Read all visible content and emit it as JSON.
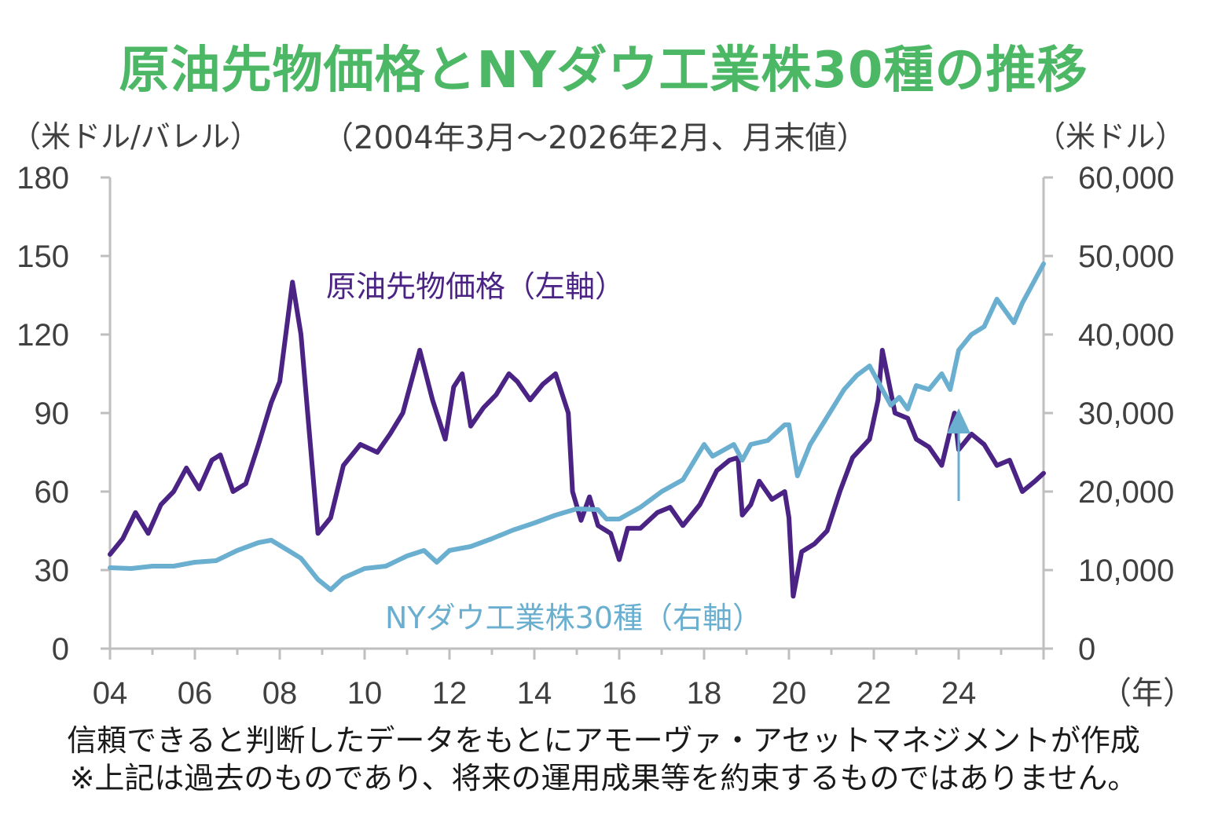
{
  "colors": {
    "title": "#4cb866",
    "oil": "#4b2385",
    "dow": "#6aafd0",
    "axis": "#bfbfbf",
    "text": "#404040"
  },
  "chart_data": {
    "type": "line",
    "title": "原油先物価格とNYダウ工業株30種の推移",
    "subtitle": "（2004年3月～2026年2月、月末値）",
    "left_unit": "（米ドル/バレル）",
    "right_unit": "（米ドル）",
    "x_unit": "（年）",
    "x_tick_labels": [
      "04",
      "06",
      "08",
      "10",
      "12",
      "14",
      "16",
      "18",
      "20",
      "22",
      "24"
    ],
    "x_range": [
      2004.0,
      2026.0
    ],
    "ylim_left": [
      0,
      180
    ],
    "yticks_left": [
      "0",
      "30",
      "60",
      "90",
      "120",
      "150",
      "180"
    ],
    "ylim_right": [
      0,
      60000
    ],
    "yticks_right": [
      "0",
      "10,000",
      "20,000",
      "30,000",
      "40,000",
      "50,000",
      "60,000"
    ],
    "series": [
      {
        "name": "原油先物価格（左軸）",
        "axis": "left",
        "x": [
          2004.0,
          2004.3,
          2004.6,
          2004.9,
          2005.2,
          2005.5,
          2005.8,
          2006.1,
          2006.4,
          2006.6,
          2006.9,
          2007.2,
          2007.5,
          2007.8,
          2008.0,
          2008.3,
          2008.5,
          2008.9,
          2009.2,
          2009.5,
          2009.9,
          2010.3,
          2010.6,
          2010.9,
          2011.1,
          2011.3,
          2011.6,
          2011.9,
          2012.1,
          2012.3,
          2012.5,
          2012.8,
          2013.1,
          2013.4,
          2013.6,
          2013.9,
          2014.2,
          2014.5,
          2014.8,
          2014.9,
          2015.1,
          2015.3,
          2015.5,
          2015.8,
          2016.0,
          2016.2,
          2016.5,
          2016.9,
          2017.2,
          2017.5,
          2017.9,
          2018.3,
          2018.6,
          2018.8,
          2018.9,
          2019.1,
          2019.3,
          2019.6,
          2019.9,
          2020.0,
          2020.1,
          2020.3,
          2020.6,
          2020.9,
          2021.2,
          2021.5,
          2021.9,
          2022.1,
          2022.2,
          2022.5,
          2022.8,
          2023.0,
          2023.3,
          2023.6,
          2023.9,
          2024.0,
          2024.3,
          2024.6,
          2024.9,
          2025.2,
          2025.5,
          2025.8,
          2026.0
        ],
        "values": [
          36,
          42,
          52,
          44,
          55,
          60,
          69,
          61,
          72,
          74,
          60,
          63,
          78,
          94,
          102,
          140,
          120,
          44,
          50,
          70,
          78,
          75,
          82,
          90,
          102,
          114,
          95,
          80,
          100,
          105,
          85,
          92,
          97,
          105,
          102,
          95,
          101,
          105,
          90,
          60,
          49,
          58,
          47,
          44,
          34,
          46,
          46,
          52,
          54,
          47,
          55,
          68,
          72,
          73,
          51,
          55,
          64,
          57,
          60,
          50,
          20,
          37,
          40,
          45,
          60,
          73,
          80,
          95,
          114,
          90,
          88,
          80,
          77,
          70,
          90,
          76,
          82,
          78,
          70,
          72,
          60,
          64,
          67
        ]
      },
      {
        "name": "NYダウ工業株30種（右軸）",
        "axis": "right",
        "x": [
          2004.0,
          2004.5,
          2005.0,
          2005.5,
          2006.0,
          2006.5,
          2007.0,
          2007.5,
          2007.8,
          2008.2,
          2008.5,
          2008.9,
          2009.2,
          2009.5,
          2010.0,
          2010.5,
          2011.0,
          2011.4,
          2011.7,
          2012.0,
          2012.5,
          2013.0,
          2013.5,
          2014.0,
          2014.5,
          2015.0,
          2015.5,
          2015.7,
          2016.0,
          2016.5,
          2017.0,
          2017.5,
          2018.0,
          2018.2,
          2018.7,
          2018.9,
          2019.1,
          2019.5,
          2019.9,
          2020.0,
          2020.2,
          2020.5,
          2020.9,
          2021.3,
          2021.6,
          2021.9,
          2022.1,
          2022.4,
          2022.6,
          2022.8,
          2023.0,
          2023.3,
          2023.6,
          2023.8,
          2024.0,
          2024.3,
          2024.6,
          2024.9,
          2025.1,
          2025.3,
          2025.5,
          2025.8,
          2026.0
        ],
        "values": [
          10300,
          10200,
          10500,
          10500,
          11000,
          11200,
          12500,
          13500,
          13800,
          12500,
          11500,
          8800,
          7500,
          9000,
          10200,
          10500,
          11800,
          12500,
          11000,
          12500,
          13000,
          14000,
          15100,
          16000,
          17000,
          17800,
          17700,
          16500,
          16500,
          18000,
          20000,
          21500,
          26000,
          24500,
          26000,
          24000,
          26000,
          26500,
          28500,
          28500,
          22000,
          26000,
          29500,
          33000,
          34800,
          36000,
          34000,
          31000,
          32000,
          30500,
          33500,
          33000,
          35000,
          33000,
          38000,
          40000,
          41000,
          44500,
          43000,
          41500,
          44000,
          47000,
          49000
        ]
      }
    ]
  },
  "footer": {
    "line1": "信頼できると判断したデータをもとにアモーヴァ・アセットマネジメントが作成",
    "line2": "※上記は過去のものであり、将来の運用成果等を約束するものではありません。"
  }
}
